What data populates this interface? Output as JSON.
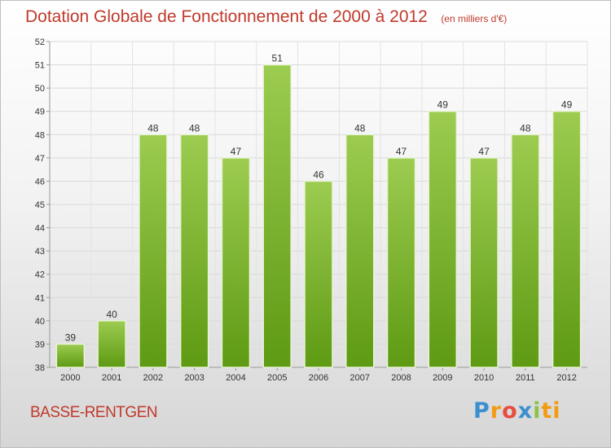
{
  "title": "Dotation Globale de Fonctionnement de 2000 à 2012",
  "unit": "(en milliers d'€)",
  "commune": "BASSE-RENTGEN",
  "logo": "Proxiti",
  "colors": {
    "bar_light": "#9ccc50",
    "bar_dark": "#5e9a13",
    "title": "#c0392b"
  },
  "chart_data": {
    "type": "bar",
    "title": "Dotation Globale de Fonctionnement de 2000 à 2012",
    "categories": [
      "2000",
      "2001",
      "2002",
      "2003",
      "2004",
      "2005",
      "2006",
      "2007",
      "2008",
      "2009",
      "2010",
      "2011",
      "2012"
    ],
    "values": [
      39,
      40,
      48,
      48,
      47,
      51,
      46,
      48,
      47,
      49,
      47,
      48,
      49
    ],
    "ylim": [
      38,
      52
    ],
    "yticks": [
      38,
      39,
      40,
      41,
      42,
      43,
      44,
      45,
      46,
      47,
      48,
      49,
      50,
      51,
      52
    ],
    "grid": true,
    "xlabel": "",
    "ylabel": ""
  }
}
